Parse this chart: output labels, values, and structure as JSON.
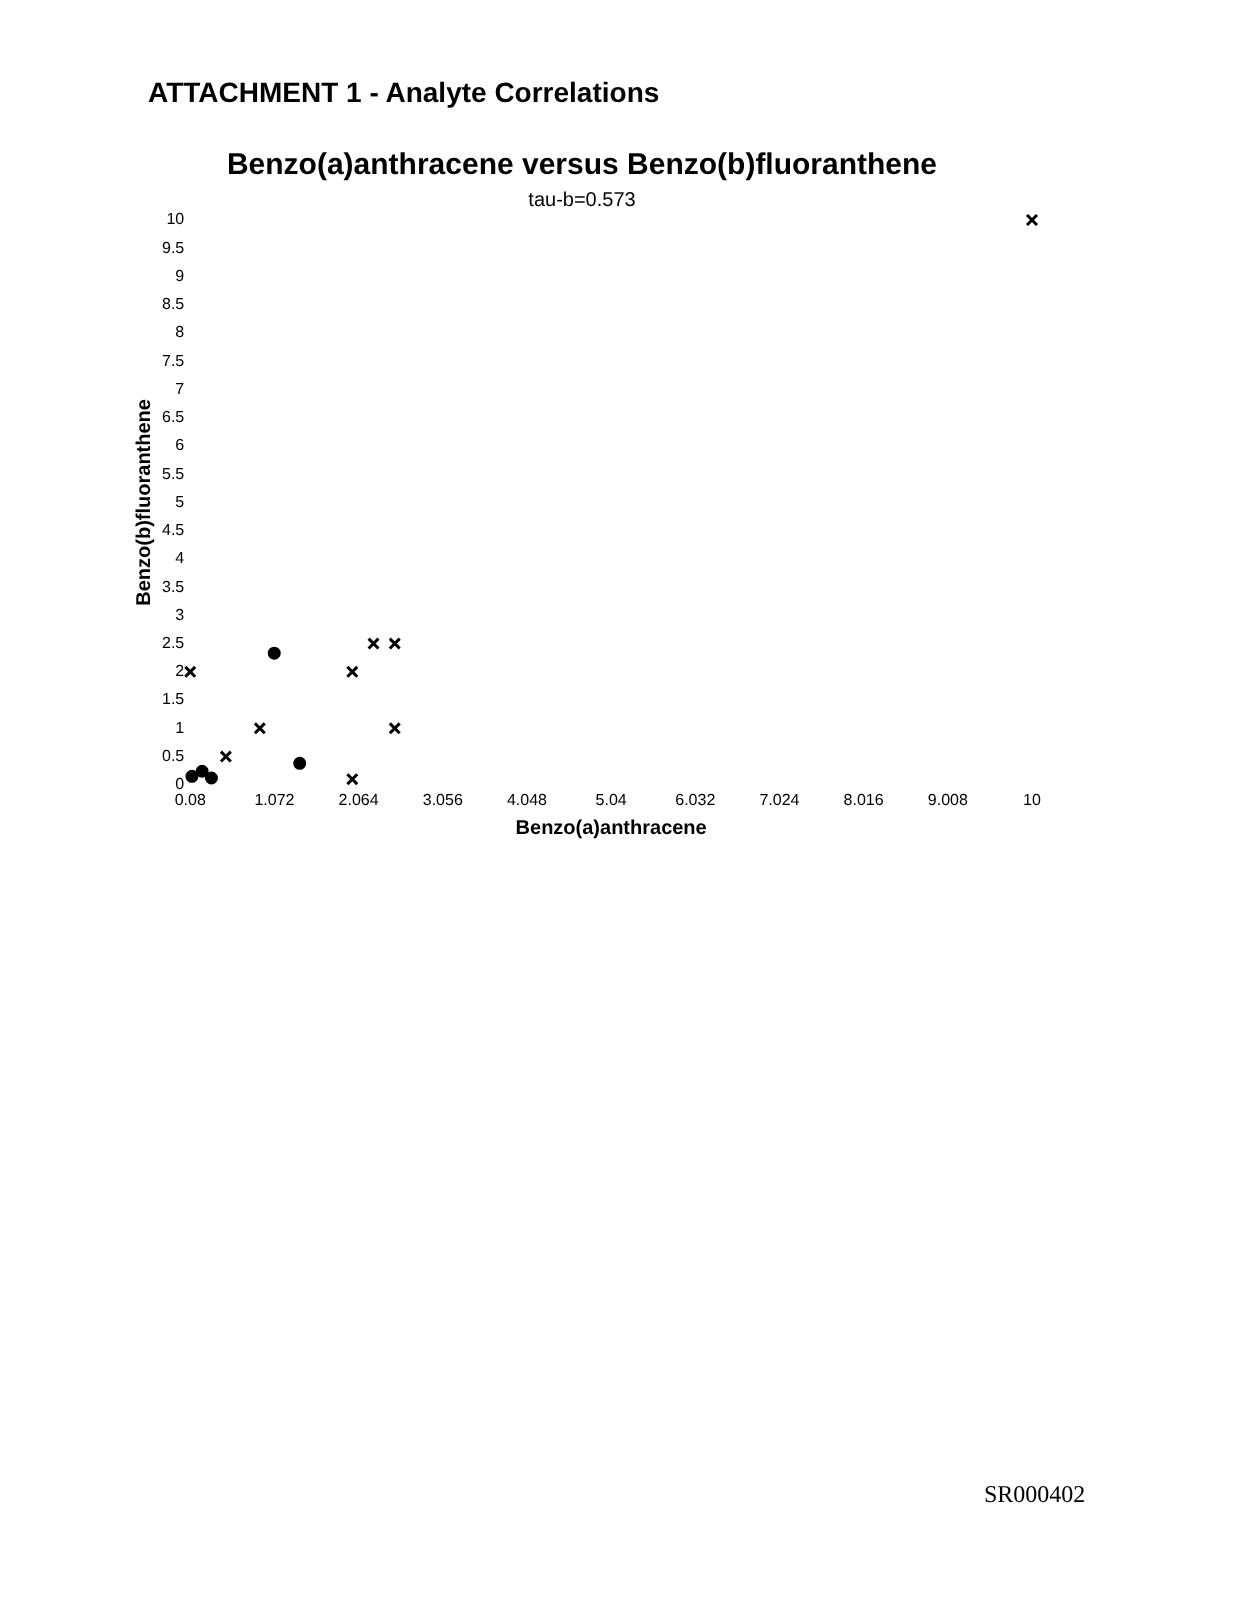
{
  "chart_data": {
    "type": "scatter",
    "title": "Benzo(a)anthracene versus Benzo(b)fluoranthene",
    "xlabel": "Benzo(a)anthracene",
    "ylabel": "Benzo(b)fluoranthene",
    "annotations": [
      "ATTACHMENT 1 - Analyte Correlations",
      "tau-b=0.573",
      "SR000402"
    ],
    "series": [
      {
        "color": "#000000",
        "marker": "cross",
        "x": [
          0.08,
          0.9,
          0.5,
          1.99,
          2.24,
          2.49,
          2.49,
          1.99,
          10
        ],
        "values": [
          2.0,
          1.0,
          0.5,
          2.0,
          2.5,
          2.5,
          1.0,
          0.1,
          10
        ]
      },
      {
        "color": "#000000",
        "marker": "circle",
        "x": [
          1.07,
          1.37,
          0.1,
          0.22,
          0.33
        ],
        "values": [
          2.33,
          0.38,
          0.15,
          0.24,
          0.12
        ]
      }
    ],
    "xlim": [
      0.08,
      10
    ],
    "xticks": [
      0.08,
      1.072,
      2.064,
      3.056,
      4.048,
      5.04,
      6.032,
      7.024,
      8.016,
      9.008,
      10
    ],
    "ylim": [
      0,
      10
    ],
    "yticks": [
      0,
      0.5,
      1,
      1.5,
      2,
      2.5,
      3,
      3.5,
      4,
      4.5,
      5,
      5.5,
      6,
      6.5,
      7,
      7.5,
      8,
      8.5,
      9,
      9.5,
      10
    ],
    "grid": false,
    "legend": false
  }
}
